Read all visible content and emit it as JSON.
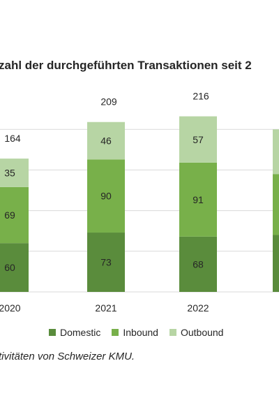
{
  "chart_data": {
    "type": "bar",
    "stacked": true,
    "title": "zahl der durchgeführten Transaktionen seit 2",
    "categories": [
      "2020",
      "2021",
      "2022",
      ""
    ],
    "series": [
      {
        "name": "Domestic",
        "color": "#5a8c3c",
        "values": [
          60,
          73,
          68,
          70
        ]
      },
      {
        "name": "Inbound",
        "color": "#78b04a",
        "values": [
          69,
          90,
          91,
          75
        ]
      },
      {
        "name": "Outbound",
        "color": "#b7d5a4",
        "values": [
          35,
          46,
          57,
          55
        ]
      }
    ],
    "totals": [
      "164",
      "209",
      "216",
      ""
    ],
    "ylim": [
      0,
      240
    ],
    "grid": true,
    "legend": "bottom"
  },
  "caption": "tivitäten von Schweizer KMU."
}
